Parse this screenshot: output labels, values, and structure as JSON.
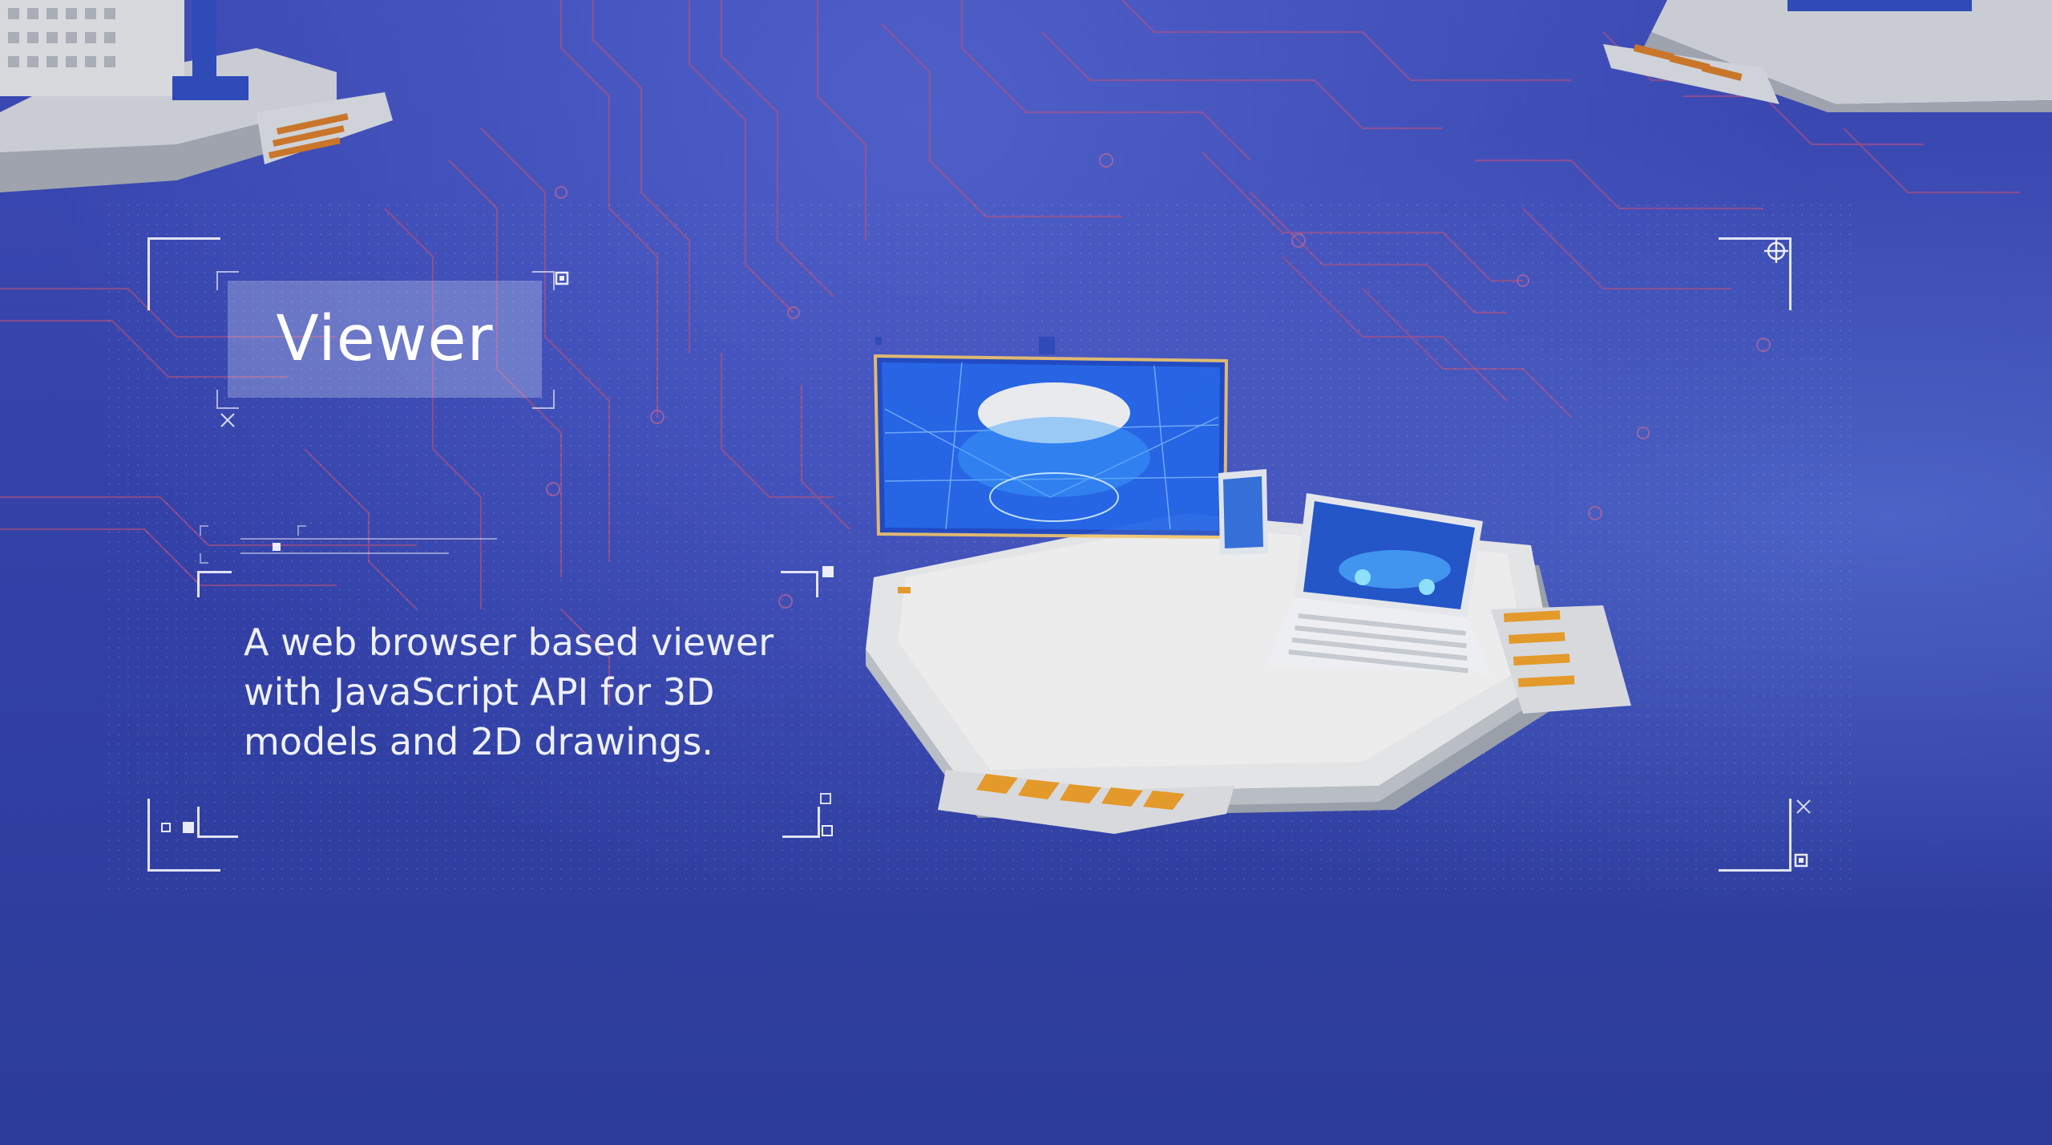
{
  "title": "Viewer",
  "description": {
    "lines": [
      "A web browser based viewer",
      "with JavaScript API for 3D",
      "models and 2D drawings."
    ]
  },
  "colors": {
    "background": "#3441a8",
    "circuit_lines": "#c0527a",
    "platform": "#dcdcdc",
    "pins": "#e39a2b",
    "screen_glow": "#2b7cff",
    "screen_frame": "#f0c46a"
  },
  "icons": [
    "crosshair-icon",
    "corner-bracket-icon",
    "expand-icon"
  ]
}
